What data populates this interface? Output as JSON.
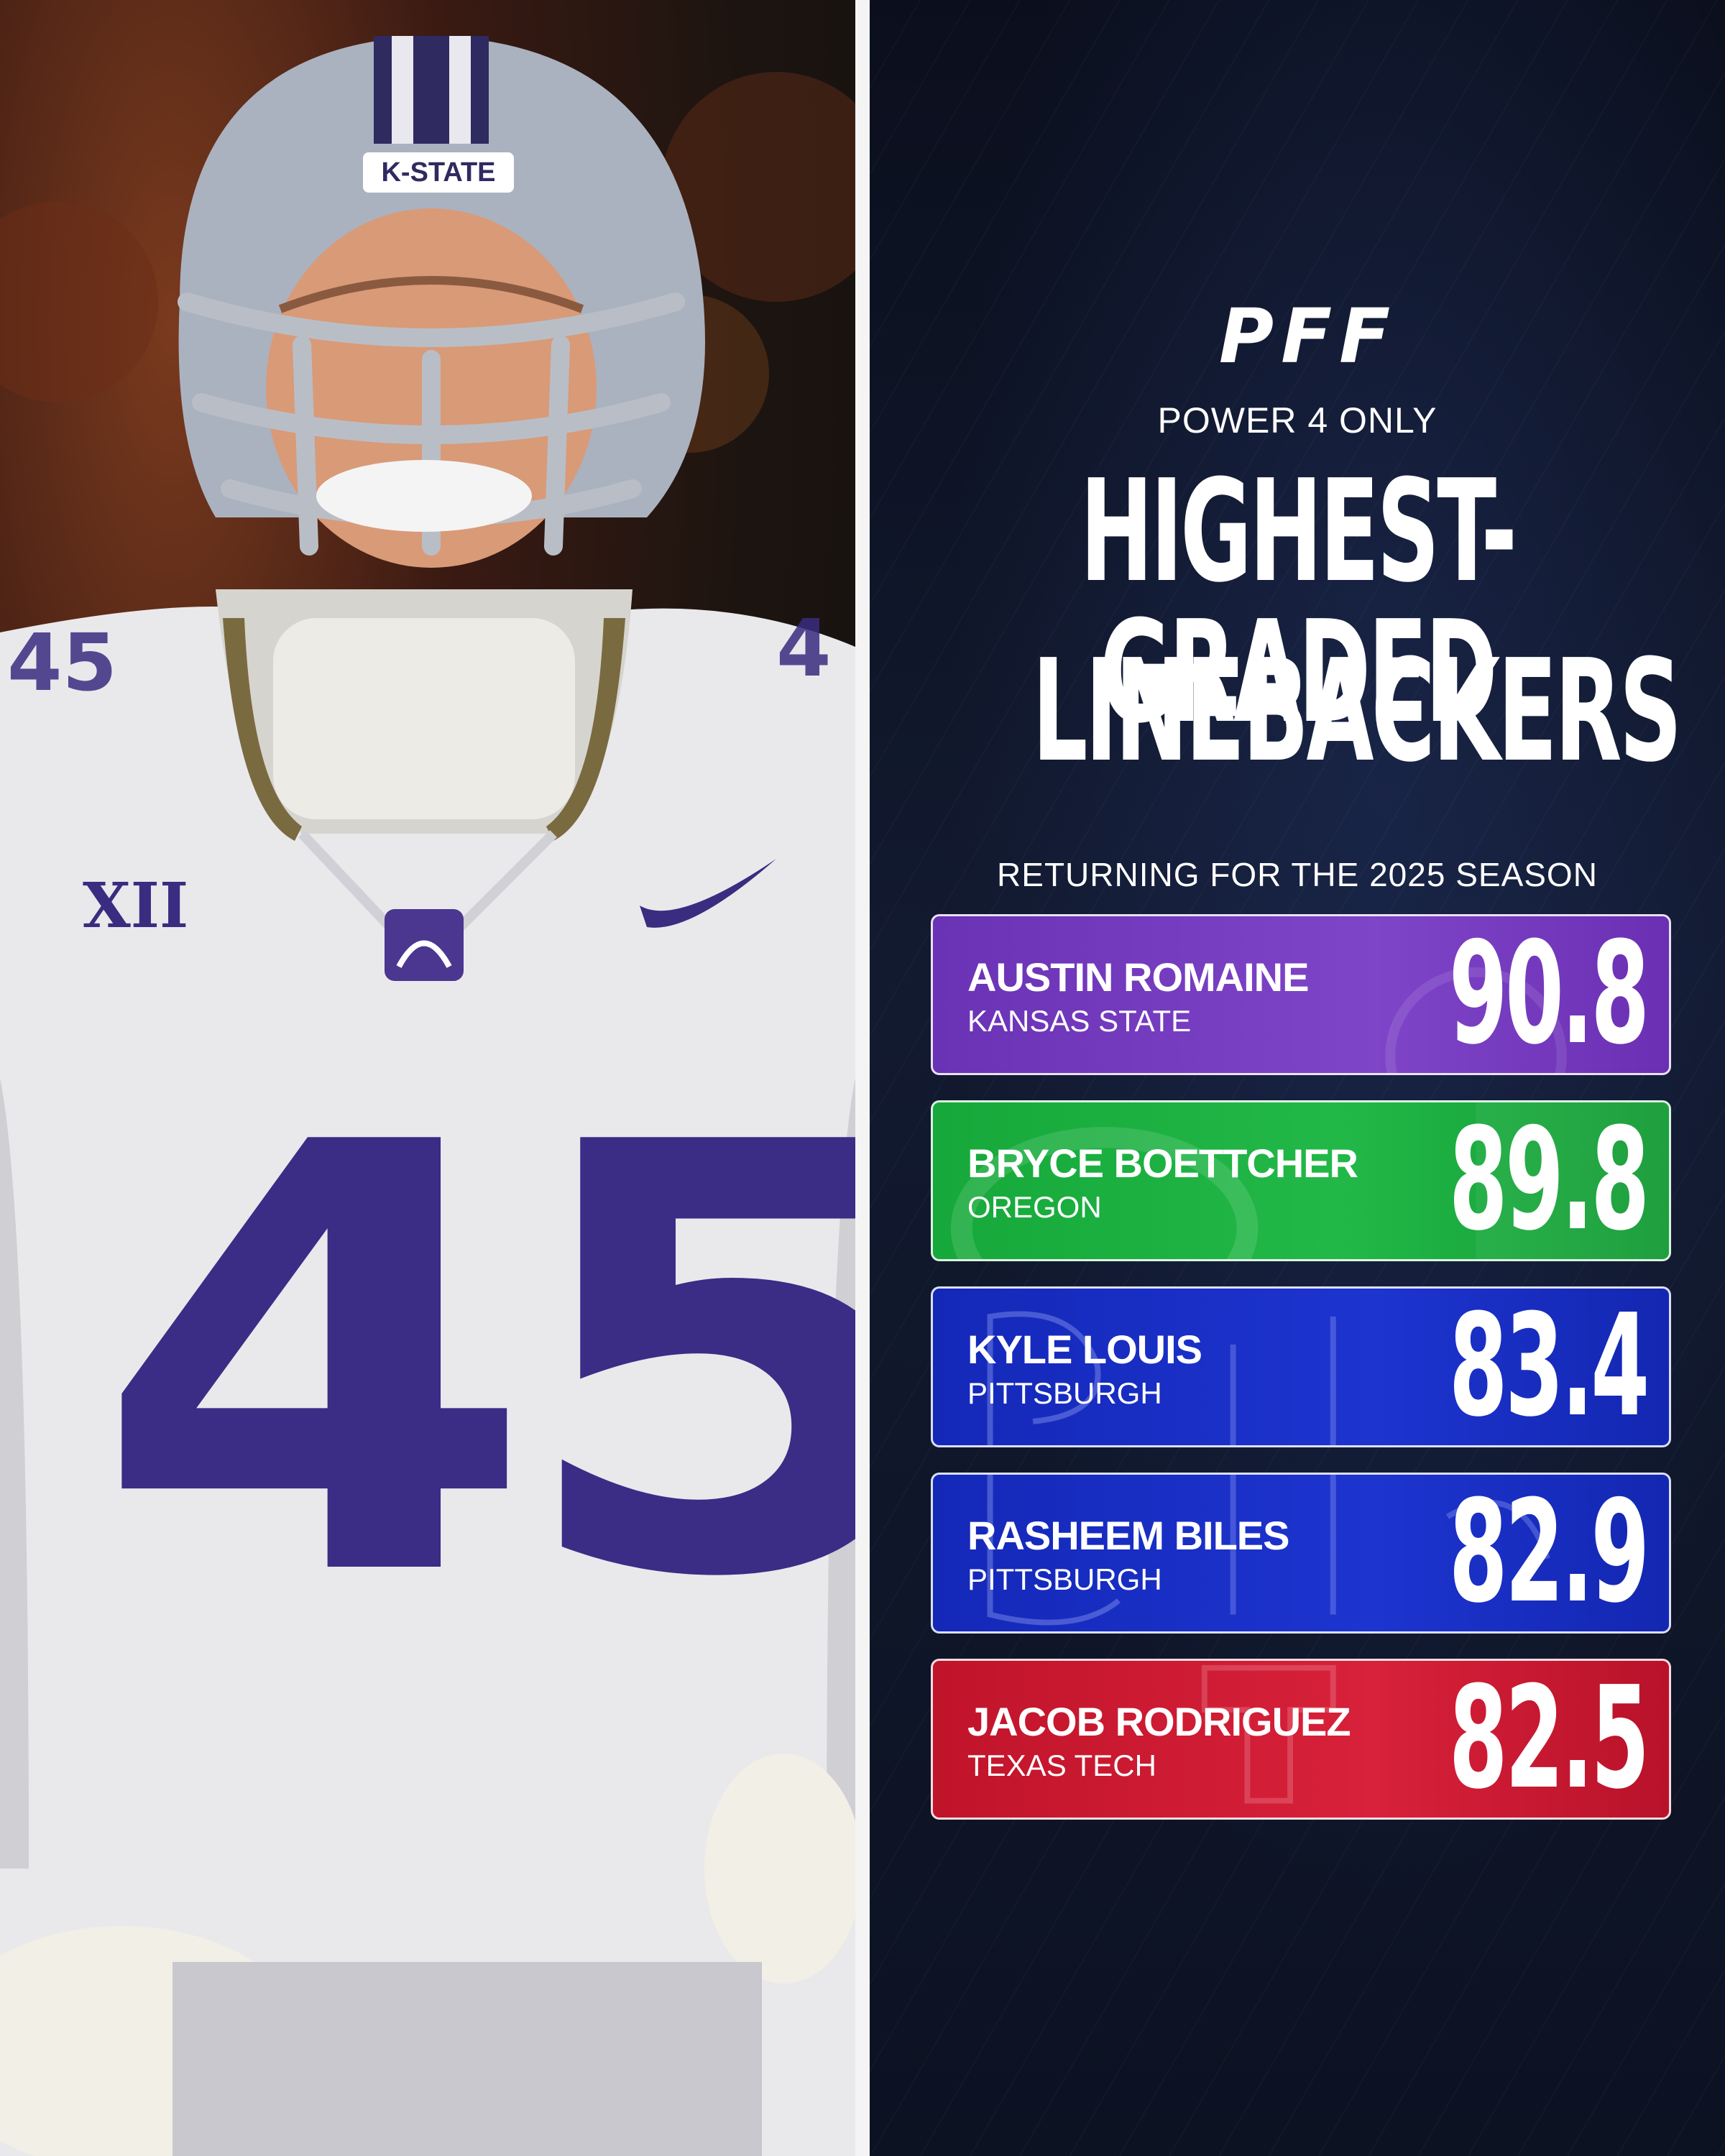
{
  "header": {
    "logo_text": "PFF",
    "kicker": "POWER 4 ONLY",
    "headline_line1": "HIGHEST-GRADED",
    "headline_line2": "LINEBACKERS",
    "subhead": "RETURNING FOR THE 2025 SEASON"
  },
  "photo": {
    "helmet_text": "K-STATE",
    "conference_patch": "XII",
    "jersey_number": "45"
  },
  "rankings": [
    {
      "name": "AUSTIN ROMAINE",
      "school": "KANSAS STATE",
      "grade": "90.8",
      "color": "#7340c0"
    },
    {
      "name": "BRYCE BOETTCHER",
      "school": "OREGON",
      "grade": "89.8",
      "color": "#1eb042"
    },
    {
      "name": "KYLE LOUIS",
      "school": "PITTSBURGH",
      "grade": "83.4",
      "color": "#1a30c8"
    },
    {
      "name": "RASHEEM BILES",
      "school": "PITTSBURGH",
      "grade": "82.9",
      "color": "#1a30c8"
    },
    {
      "name": "JACOB RODRIGUEZ",
      "school": "TEXAS TECH",
      "grade": "82.5",
      "color": "#cc1a32"
    }
  ]
}
